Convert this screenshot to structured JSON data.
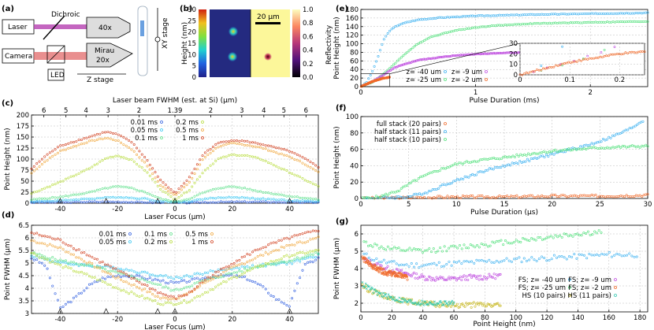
{
  "panel_labels": [
    "(a)",
    "(b)",
    "(c)",
    "(d)",
    "(e)",
    "(f)",
    "(g)"
  ],
  "schematic": {
    "laser": "Laser",
    "camera": "Camera",
    "dichroic": "Dichroic",
    "objective_40x": "40x",
    "mirau_top": "Mirau",
    "mirau_bottom": "20x",
    "led": "LED",
    "z_stage": "Z stage",
    "xy_stage": "XY stage"
  },
  "colors": {
    "c001": "#2e5de0",
    "c005": "#36c6f2",
    "c01": "#5de08a",
    "c02": "#b7dc3a",
    "c05": "#f0a63a",
    "c1": "#d2401f",
    "e40": "#3ab0f0",
    "e25": "#4fe07a",
    "e9": "#c04fe0",
    "e2": "#f06a2a",
    "f20": "#f06a2a",
    "f11": "#3ab0f0",
    "f10": "#4fe07a",
    "gfs40": "#3ab0f0",
    "gfs25": "#4fe07a",
    "gfs9": "#c04fe0",
    "gfs2": "#f06a2a",
    "ghs10": "#c8b820",
    "ghs11": "#30c8b0"
  },
  "chart_data": [
    {
      "id": "b",
      "type": "heatmap",
      "scalebar": "20 µm",
      "left_colorbar": {
        "label": "Height (nm)",
        "ticks": [
          0,
          5,
          10,
          15,
          20,
          25,
          30
        ],
        "range": [
          0,
          30
        ]
      },
      "right_colorbar": {
        "label": "Reflectivity",
        "ticks": [
          0.0,
          0.2,
          0.4,
          0.6,
          0.8,
          1.0
        ],
        "range": [
          0,
          1
        ]
      }
    },
    {
      "id": "c",
      "type": "scatter",
      "xlabel": "Laser Focus (µm)",
      "ylabel": "Point Height (nm)",
      "top_xlabel": "Laser beam FWHM (est. at Si) (µm)",
      "top_ticks": [
        "6",
        "5",
        "4",
        "3",
        "2",
        "1.39",
        "2",
        "3",
        "4",
        "5",
        "6"
      ],
      "top_tick_positions": [
        -45.7,
        -38.0,
        -31.0,
        -23.3,
        -12.5,
        0,
        12.5,
        23.3,
        31.0,
        38.0,
        45.7
      ],
      "xlim": [
        -50,
        50
      ],
      "ylim": [
        0,
        200
      ],
      "xticks": [
        -40,
        -20,
        0,
        20,
        40
      ],
      "yticks": [
        0,
        25,
        50,
        75,
        100,
        125,
        150,
        175,
        200
      ],
      "triangles": [
        -40,
        -24,
        -6,
        0,
        40
      ],
      "legend": [
        "0.01 ms",
        "0.2 ms",
        "0.05 ms",
        "0.5 ms",
        "0.1 ms",
        "1 ms"
      ],
      "series": [
        {
          "name": "0.01 ms",
          "ck": "c001",
          "x": [
            -50,
            -40,
            -30,
            -20,
            -10,
            -5,
            0,
            5,
            10,
            20,
            30,
            40,
            50
          ],
          "y": [
            2,
            2,
            3,
            3,
            2,
            1,
            1,
            1,
            2,
            3,
            3,
            2,
            2
          ]
        },
        {
          "name": "0.05 ms",
          "ck": "c005",
          "x": [
            -50,
            -40,
            -30,
            -20,
            -10,
            -5,
            0,
            5,
            10,
            20,
            30,
            40,
            50
          ],
          "y": [
            4,
            6,
            10,
            14,
            10,
            4,
            2,
            4,
            10,
            14,
            10,
            6,
            4
          ]
        },
        {
          "name": "0.1 ms",
          "ck": "c01",
          "x": [
            -50,
            -40,
            -30,
            -24,
            -20,
            -15,
            -10,
            -5,
            0,
            5,
            10,
            15,
            20,
            24,
            30,
            40,
            50
          ],
          "y": [
            8,
            14,
            24,
            34,
            38,
            34,
            24,
            10,
            3,
            10,
            24,
            34,
            38,
            34,
            26,
            16,
            8
          ]
        },
        {
          "name": "0.2 ms",
          "ck": "c02",
          "x": [
            -50,
            -40,
            -30,
            -24,
            -20,
            -15,
            -10,
            -5,
            0,
            5,
            10,
            15,
            20,
            25,
            30,
            40,
            50
          ],
          "y": [
            22,
            48,
            78,
            102,
            108,
            98,
            72,
            32,
            8,
            30,
            72,
            100,
            110,
            108,
            100,
            70,
            38
          ]
        },
        {
          "name": "0.5 ms",
          "ck": "c05",
          "x": [
            -50,
            -45,
            -40,
            -30,
            -24,
            -20,
            -15,
            -10,
            -5,
            0,
            5,
            10,
            15,
            20,
            25,
            30,
            40,
            45,
            50
          ],
          "y": [
            68,
            96,
            118,
            140,
            148,
            142,
            122,
            88,
            40,
            18,
            46,
            102,
            128,
            136,
            132,
            126,
            105,
            90,
            70
          ]
        },
        {
          "name": "1 ms",
          "ck": "c1",
          "x": [
            -50,
            -45,
            -40,
            -30,
            -24,
            -20,
            -15,
            -10,
            -5,
            0,
            5,
            10,
            15,
            20,
            25,
            30,
            40,
            45,
            50
          ],
          "y": [
            78,
            108,
            130,
            150,
            162,
            156,
            138,
            100,
            52,
            22,
            58,
            112,
            136,
            143,
            140,
            134,
            118,
            102,
            82
          ]
        }
      ]
    },
    {
      "id": "d",
      "type": "scatter",
      "xlabel": "Laser Focus (µm)",
      "ylabel": "Point FWHM (µm)",
      "xlim": [
        -50,
        50
      ],
      "ylim": [
        3,
        6.5
      ],
      "xticks": [
        -40,
        -20,
        0,
        20,
        40
      ],
      "yticks": [
        3,
        3.5,
        4,
        4.5,
        5,
        5.5,
        6,
        6.5
      ],
      "triangles": [
        -40,
        -24,
        -6,
        0,
        40
      ],
      "legend": [
        "0.01 ms",
        "0.1 ms",
        "0.5 ms",
        "0.05 ms",
        "0.2 ms",
        "1 ms"
      ],
      "series": [
        {
          "name": "0.01 ms",
          "ck": "c001",
          "x": [
            -50,
            -45,
            -40,
            -35,
            -30,
            -25,
            -20,
            -15,
            -10,
            -5,
            0,
            5,
            10,
            15,
            20,
            25,
            30,
            35,
            40,
            45,
            50
          ],
          "y": [
            5.2,
            4.9,
            3.2,
            3.6,
            4.1,
            4.4,
            4.5,
            4.5,
            4.4,
            4.3,
            4.2,
            4.3,
            4.4,
            4.5,
            4.5,
            4.4,
            4.1,
            3.6,
            3.3,
            4.9,
            5.2
          ]
        },
        {
          "name": "0.05 ms",
          "ck": "c005",
          "x": [
            -50,
            -40,
            -30,
            -20,
            -10,
            -5,
            0,
            5,
            10,
            20,
            30,
            40,
            50
          ],
          "y": [
            5.3,
            5.0,
            4.9,
            4.8,
            4.6,
            4.5,
            4.4,
            4.5,
            4.6,
            4.8,
            4.9,
            5.0,
            5.3
          ]
        },
        {
          "name": "0.1 ms",
          "ck": "c01",
          "x": [
            -50,
            -40,
            -30,
            -20,
            -10,
            -5,
            0,
            5,
            10,
            20,
            30,
            40,
            50
          ],
          "y": [
            5.4,
            5.1,
            4.9,
            4.6,
            4.3,
            4.1,
            3.9,
            4.1,
            4.3,
            4.6,
            4.9,
            5.1,
            5.4
          ]
        },
        {
          "name": "0.2 ms",
          "ck": "c02",
          "x": [
            -50,
            -40,
            -30,
            -20,
            -10,
            -5,
            0,
            5,
            10,
            20,
            30,
            40,
            50
          ],
          "y": [
            5.4,
            4.9,
            4.5,
            4.0,
            3.6,
            3.4,
            3.4,
            3.5,
            3.8,
            4.4,
            4.9,
            5.3,
            5.5
          ]
        },
        {
          "name": "0.5 ms",
          "ck": "c05",
          "x": [
            -50,
            -40,
            -30,
            -20,
            -10,
            -5,
            0,
            5,
            10,
            20,
            30,
            40,
            50
          ],
          "y": [
            5.9,
            5.6,
            5.0,
            4.4,
            3.9,
            3.6,
            3.6,
            3.8,
            4.2,
            4.8,
            5.3,
            5.7,
            6.0
          ]
        },
        {
          "name": "1 ms",
          "ck": "c1",
          "x": [
            -50,
            -40,
            -30,
            -20,
            -10,
            -5,
            0,
            5,
            10,
            20,
            30,
            40,
            50
          ],
          "y": [
            6.2,
            5.9,
            5.3,
            4.7,
            4.1,
            3.8,
            3.6,
            3.8,
            4.3,
            5.0,
            5.6,
            6.0,
            6.3
          ]
        }
      ]
    },
    {
      "id": "e",
      "type": "scatter",
      "xlabel": "Pulse Duration (ms)",
      "ylabel": "Point Height (nm)",
      "xlim": [
        0,
        2.5
      ],
      "ylim": [
        0,
        180
      ],
      "xticks": [
        0,
        1,
        2
      ],
      "yticks": [
        0,
        20,
        40,
        60,
        80,
        100,
        120,
        140,
        160,
        180
      ],
      "legend": [
        "z= -40 um",
        "z= -9 um",
        "z= -25 um",
        "z= -2 um"
      ],
      "series": [
        {
          "name": "z= -40 um",
          "ck": "e40",
          "x": [
            0,
            0.05,
            0.1,
            0.15,
            0.2,
            0.25,
            0.3,
            0.35,
            0.4,
            0.5,
            0.7,
            1.0,
            1.5,
            2.0,
            2.5
          ],
          "y": [
            0,
            10,
            35,
            70,
            110,
            130,
            140,
            146,
            150,
            156,
            161,
            165,
            168,
            170,
            172
          ]
        },
        {
          "name": "z= -25 um",
          "ck": "e25",
          "x": [
            0,
            0.1,
            0.2,
            0.3,
            0.4,
            0.5,
            0.6,
            0.8,
            1.0,
            1.2,
            1.5,
            2.0,
            2.5
          ],
          "y": [
            0,
            10,
            30,
            55,
            80,
            100,
            115,
            130,
            138,
            143,
            147,
            150,
            152
          ]
        },
        {
          "name": "z= -9 um",
          "ck": "e9",
          "x": [
            0,
            0.1,
            0.2,
            0.3,
            0.5,
            0.8,
            1.0,
            1.3,
            1.6
          ],
          "y": [
            0,
            12,
            28,
            45,
            62,
            72,
            76,
            79,
            81
          ]
        },
        {
          "name": "z= -2 um",
          "ck": "e2",
          "x": [
            0,
            0.05,
            0.1,
            0.15,
            0.2,
            0.25
          ],
          "y": [
            0,
            6,
            12,
            16,
            20,
            22
          ]
        }
      ],
      "inset": {
        "xlim": [
          0,
          0.25
        ],
        "ylim": [
          0,
          30
        ],
        "xticks": [
          0,
          0.1,
          0.2
        ],
        "yticks": [
          0,
          10,
          20,
          30
        ]
      }
    },
    {
      "id": "f",
      "type": "scatter",
      "xlabel": "Pulse Duration (µs)",
      "ylabel": "Point Height (nm)",
      "xlim": [
        0,
        30
      ],
      "ylim": [
        0,
        100
      ],
      "xticks": [
        0,
        5,
        10,
        15,
        20,
        25,
        30
      ],
      "yticks": [
        0,
        20,
        40,
        60,
        80,
        100
      ],
      "legend": [
        "full stack (20 pairs)",
        "half stack (11 pairs)",
        "half stack (10 pairs)"
      ],
      "series": [
        {
          "name": "full stack (20 pairs)",
          "ck": "f20",
          "x": [
            0,
            5,
            10,
            15,
            20,
            25,
            30
          ],
          "y": [
            0,
            1,
            2,
            2,
            3,
            3,
            4
          ]
        },
        {
          "name": "half stack (11 pairs)",
          "ck": "f11",
          "x": [
            0,
            5,
            7,
            9,
            11,
            13,
            15,
            18,
            20,
            22,
            24,
            26,
            28,
            29.5
          ],
          "y": [
            0,
            2,
            8,
            18,
            26,
            34,
            40,
            48,
            54,
            60,
            66,
            74,
            84,
            95
          ]
        },
        {
          "name": "half stack (10 pairs)",
          "ck": "f10",
          "x": [
            0,
            2,
            4,
            6,
            8,
            10,
            12,
            15,
            18,
            20,
            25,
            30
          ],
          "y": [
            0,
            2,
            10,
            24,
            34,
            42,
            46,
            50,
            55,
            58,
            62,
            64
          ]
        }
      ]
    },
    {
      "id": "g",
      "type": "scatter",
      "xlabel": "Point Height (nm)",
      "ylabel": "Point FWHM (µm)",
      "xlim": [
        0,
        185
      ],
      "ylim": [
        1.5,
        6.5
      ],
      "xticks": [
        0,
        20,
        40,
        60,
        80,
        100,
        120,
        140,
        160,
        180
      ],
      "yticks": [
        2,
        3,
        4,
        5,
        6
      ],
      "legend": [
        "FS; z= -40 um",
        "FS; z= -9 um",
        "FS; z= -25 um",
        "FS; z= -2 um",
        "HS (10 pairs)",
        "HS (11 pairs)"
      ],
      "series": [
        {
          "name": "FS; z= -40 um",
          "ck": "gfs40",
          "x": [
            2,
            10,
            20,
            30,
            40,
            60,
            80,
            100,
            120,
            140,
            160,
            178
          ],
          "y": [
            4.8,
            4.5,
            4.3,
            4.2,
            4.2,
            4.3,
            4.4,
            4.5,
            4.6,
            4.7,
            4.8,
            4.8
          ]
        },
        {
          "name": "FS; z= -25 um",
          "ck": "gfs25",
          "x": [
            2,
            10,
            20,
            40,
            60,
            80,
            100,
            120,
            140,
            155
          ],
          "y": [
            5.5,
            5.3,
            5.1,
            5.0,
            5.2,
            5.4,
            5.6,
            5.8,
            6.0,
            6.1
          ]
        },
        {
          "name": "FS; z= -9 um",
          "ck": "gfs9",
          "x": [
            2,
            10,
            20,
            30,
            40,
            50,
            60,
            70,
            80,
            90
          ],
          "y": [
            4.5,
            4.2,
            3.9,
            3.7,
            3.5,
            3.4,
            3.4,
            3.5,
            3.5,
            3.6
          ]
        },
        {
          "name": "FS; z= -2 um",
          "ck": "gfs2",
          "x": [
            1,
            5,
            10,
            15,
            20,
            25,
            30
          ],
          "y": [
            4.6,
            4.3,
            4.0,
            3.8,
            3.7,
            3.6,
            3.5
          ]
        },
        {
          "name": "HS (10 pairs)",
          "ck": "ghs10",
          "x": [
            1,
            5,
            10,
            20,
            30,
            40,
            50,
            60,
            70,
            80,
            90
          ],
          "y": [
            3.0,
            2.8,
            2.6,
            2.3,
            2.1,
            2.0,
            1.9,
            1.9,
            1.9,
            1.9,
            1.9
          ]
        },
        {
          "name": "HS (11 pairs)",
          "ck": "ghs11",
          "x": [
            1,
            5,
            10,
            20,
            30,
            40,
            50,
            60
          ],
          "y": [
            3.1,
            2.9,
            2.6,
            2.3,
            2.1,
            2.0,
            2.0,
            2.0
          ]
        }
      ]
    }
  ]
}
